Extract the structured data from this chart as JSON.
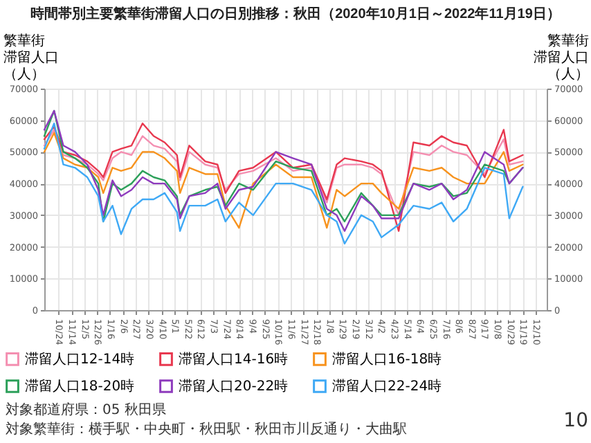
{
  "chart_data": {
    "type": "line",
    "title": "時間帯別主要繁華街滞留人口の日別推移：秋田（2020年10月1日～2022年11月19日）",
    "ylabel": "繁華街滞留人口（人）",
    "y2label": "繁華街滞留人口（人）",
    "x": [
      "2020-10-01",
      "2020-10-17",
      "2020-11-01",
      "2020-11-20",
      "2020-12-10",
      "2020-12-28",
      "2021-01-05",
      "2021-01-20",
      "2021-02-03",
      "2021-02-20",
      "2021-03-10",
      "2021-03-28",
      "2021-04-15",
      "2021-05-05",
      "2021-05-10",
      "2021-05-25",
      "2021-06-20",
      "2021-07-10",
      "2021-07-23",
      "2021-08-14",
      "2021-09-06",
      "2021-10-13",
      "2021-11-10",
      "2021-12-10",
      "2022-01-04",
      "2022-01-20",
      "2022-02-02",
      "2022-03-01",
      "2022-03-20",
      "2022-04-03",
      "2022-05-01",
      "2022-05-25",
      "2022-06-20",
      "2022-07-10",
      "2022-07-29",
      "2022-08-20",
      "2022-09-18",
      "2022-10-19",
      "2022-10-28",
      "2022-11-19"
    ],
    "series": [
      {
        "name": "滞留人口12-14時",
        "color": "#f48fb1",
        "values": [
          52000,
          57000,
          49000,
          48000,
          46000,
          43000,
          41000,
          48000,
          50000,
          49000,
          55000,
          52000,
          51000,
          47000,
          41000,
          50000,
          46000,
          45000,
          38000,
          43000,
          44000,
          48000,
          44000,
          45000,
          34000,
          45000,
          46000,
          46000,
          45000,
          43000,
          30000,
          50000,
          49000,
          52000,
          50000,
          49000,
          43000,
          54000,
          46000,
          47000
        ]
      },
      {
        "name": "滞留人口14-16時",
        "color": "#e8384f",
        "values": [
          54000,
          58000,
          50000,
          49000,
          47000,
          44000,
          42000,
          50000,
          51000,
          52000,
          59000,
          55000,
          53000,
          49000,
          42000,
          52000,
          47000,
          46000,
          37000,
          44000,
          45000,
          50000,
          45000,
          46000,
          35000,
          46000,
          48000,
          47000,
          46000,
          44000,
          25000,
          53000,
          52000,
          55000,
          53000,
          52000,
          42000,
          57000,
          47000,
          49000
        ]
      },
      {
        "name": "滞留人口16-18時",
        "color": "#f7931e",
        "values": [
          50000,
          56000,
          48000,
          46000,
          45000,
          42000,
          37000,
          45000,
          44000,
          45000,
          50000,
          50000,
          48000,
          44000,
          37000,
          45000,
          43000,
          43000,
          33000,
          26000,
          40000,
          46000,
          42000,
          42000,
          26000,
          38000,
          36000,
          40000,
          40000,
          37000,
          32000,
          45000,
          44000,
          45000,
          42000,
          40000,
          40000,
          50000,
          44000,
          46000
        ]
      },
      {
        "name": "滞留人口18-20時",
        "color": "#2ca05a",
        "values": [
          55000,
          63000,
          50000,
          48000,
          45000,
          40000,
          28000,
          40000,
          38000,
          40000,
          44000,
          42000,
          41000,
          36000,
          30000,
          36000,
          38000,
          39000,
          33000,
          40000,
          38000,
          47000,
          45000,
          44000,
          30000,
          32000,
          28000,
          37000,
          33000,
          30000,
          30000,
          40000,
          39000,
          40000,
          36000,
          37000,
          46000,
          44000,
          40000,
          45000
        ]
      },
      {
        "name": "滞留人口20-22時",
        "color": "#8e3bbd",
        "values": [
          57000,
          63000,
          52000,
          50000,
          46000,
          38000,
          30000,
          41000,
          36000,
          38000,
          42000,
          40000,
          40000,
          35000,
          29000,
          36000,
          37000,
          40000,
          32000,
          38000,
          39000,
          50000,
          48000,
          46000,
          32000,
          30000,
          25000,
          36000,
          33000,
          29000,
          29000,
          40000,
          38000,
          40000,
          35000,
          38000,
          50000,
          46000,
          40000,
          45000
        ]
      },
      {
        "name": "滞留人口22-24時",
        "color": "#3fa9f5",
        "values": [
          51000,
          59000,
          46000,
          45000,
          42000,
          36000,
          28000,
          33000,
          24000,
          32000,
          35000,
          35000,
          37000,
          31000,
          25000,
          33000,
          33000,
          35000,
          28000,
          34000,
          30000,
          40000,
          40000,
          38000,
          30000,
          28000,
          21000,
          30000,
          28000,
          23000,
          27000,
          33000,
          32000,
          34000,
          28000,
          32000,
          45000,
          43000,
          29000,
          39000
        ]
      }
    ],
    "xlim": [
      "2020-10-01",
      "2022-12-28"
    ],
    "xticks": [
      {
        "value": "2020-10-24",
        "label": "10/24"
      },
      {
        "value": "2020-11-14",
        "label": "11/14"
      },
      {
        "value": "2020-12-05",
        "label": "12/5"
      },
      {
        "value": "2020-12-26",
        "label": "12/26"
      },
      {
        "value": "2021-01-16",
        "label": "1/16"
      },
      {
        "value": "2021-02-06",
        "label": "2/6"
      },
      {
        "value": "2021-02-27",
        "label": "2/27"
      },
      {
        "value": "2021-03-20",
        "label": "3/20"
      },
      {
        "value": "2021-04-10",
        "label": "4/10"
      },
      {
        "value": "2021-05-01",
        "label": "5/1"
      },
      {
        "value": "2021-05-22",
        "label": "5/22"
      },
      {
        "value": "2021-06-12",
        "label": "6/12"
      },
      {
        "value": "2021-07-03",
        "label": "7/3"
      },
      {
        "value": "2021-07-24",
        "label": "7/24"
      },
      {
        "value": "2021-08-14",
        "label": "8/14"
      },
      {
        "value": "2021-09-04",
        "label": "9/4"
      },
      {
        "value": "2021-09-25",
        "label": "9/25"
      },
      {
        "value": "2021-10-16",
        "label": "10/16"
      },
      {
        "value": "2021-11-06",
        "label": "11/6"
      },
      {
        "value": "2021-11-27",
        "label": "11/27"
      },
      {
        "value": "2021-12-18",
        "label": "12/18"
      },
      {
        "value": "2022-01-08",
        "label": "1/8"
      },
      {
        "value": "2022-01-29",
        "label": "1/29"
      },
      {
        "value": "2022-02-19",
        "label": "2/19"
      },
      {
        "value": "2022-03-12",
        "label": "3/12"
      },
      {
        "value": "2022-04-02",
        "label": "4/2"
      },
      {
        "value": "2022-04-23",
        "label": "4/23"
      },
      {
        "value": "2022-05-14",
        "label": "5/14"
      },
      {
        "value": "2022-06-04",
        "label": "6/4"
      },
      {
        "value": "2022-06-25",
        "label": "6/25"
      },
      {
        "value": "2022-07-16",
        "label": "7/16"
      },
      {
        "value": "2022-08-06",
        "label": "8/6"
      },
      {
        "value": "2022-08-27",
        "label": "8/27"
      },
      {
        "value": "2022-09-17",
        "label": "9/17"
      },
      {
        "value": "2022-10-08",
        "label": "10/8"
      },
      {
        "value": "2022-10-29",
        "label": "10/29"
      },
      {
        "value": "2022-11-19",
        "label": "11/19"
      },
      {
        "value": "2022-12-10",
        "label": "12/10"
      }
    ],
    "ylim": [
      0,
      70000
    ],
    "yticks": [
      0,
      10000,
      20000,
      30000,
      40000,
      50000,
      60000,
      70000
    ],
    "y2lim": [
      0,
      70000
    ],
    "y2ticks": [
      0,
      10000,
      20000,
      30000,
      40000,
      50000,
      60000,
      70000
    ],
    "grid": true,
    "legend": "bottom",
    "annotations": [
      "対象都道府県：05 秋田県",
      "対象繁華街：横手駅・中央町・秋田駅・秋田市川反通り・大曲駅",
      "10"
    ]
  }
}
